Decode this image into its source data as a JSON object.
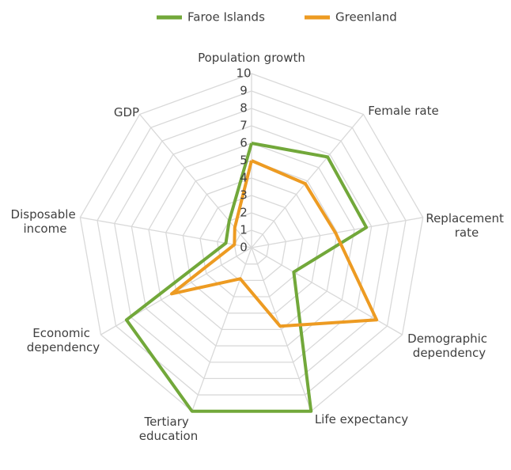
{
  "chart_data": {
    "type": "radar",
    "categories": [
      "Population growth",
      "Female rate",
      "Replacement rate",
      "Demographic dependency",
      "Life expectancy",
      "Tertiary education",
      "Economic dependency",
      "Disposable income",
      "GDP"
    ],
    "series": [
      {
        "name": "Faroe Islands",
        "color": "#72a83a",
        "values": [
          6.0,
          6.8,
          6.7,
          2.8,
          10,
          10,
          8.3,
          1.5,
          2.0
        ]
      },
      {
        "name": "Greenland",
        "color": "#ed9b22",
        "values": [
          5.0,
          4.8,
          4.9,
          8.3,
          4.8,
          1.9,
          5.3,
          1.0,
          1.5
        ]
      }
    ],
    "rlim": [
      0,
      10
    ],
    "rticks": [
      0,
      1,
      2,
      3,
      4,
      5,
      6,
      7,
      8,
      9,
      10
    ],
    "grid": true,
    "legend": "top"
  }
}
